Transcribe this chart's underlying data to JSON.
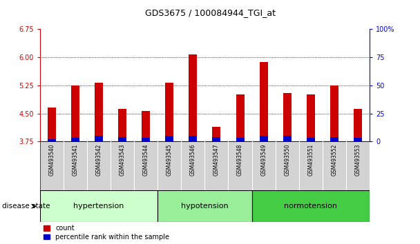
{
  "title": "GDS3675 / 100084944_TGI_at",
  "samples": [
    "GSM493540",
    "GSM493541",
    "GSM493542",
    "GSM493543",
    "GSM493544",
    "GSM493545",
    "GSM493546",
    "GSM493547",
    "GSM493548",
    "GSM493549",
    "GSM493550",
    "GSM493551",
    "GSM493552",
    "GSM493553"
  ],
  "count_values": [
    4.65,
    5.25,
    5.32,
    4.62,
    4.57,
    5.32,
    6.08,
    4.15,
    5.0,
    5.88,
    5.05,
    5.0,
    5.25,
    4.62
  ],
  "percentile_values": [
    2,
    3,
    5,
    4,
    3,
    5,
    5,
    4,
    3,
    5,
    5,
    3,
    4,
    3
  ],
  "ylim_left": [
    3.75,
    6.75
  ],
  "ylim_right": [
    0,
    100
  ],
  "yticks_left": [
    3.75,
    4.5,
    5.25,
    6.0,
    6.75
  ],
  "yticks_right": [
    0,
    25,
    50,
    75,
    100
  ],
  "groups": [
    {
      "label": "hypertension",
      "start": 0,
      "end": 5,
      "color": "#ccffcc"
    },
    {
      "label": "hypotension",
      "start": 5,
      "end": 9,
      "color": "#99ee99"
    },
    {
      "label": "normotension",
      "start": 9,
      "end": 14,
      "color": "#44cc44"
    }
  ],
  "bar_color_red": "#cc0000",
  "bar_color_blue": "#0000cc",
  "bar_width": 0.35,
  "bg_color": "#ffffff",
  "plot_bg": "#ffffff",
  "tick_color_left": "#cc0000",
  "tick_color_right": "#0000cc",
  "grid_color": "#000000",
  "group_bar_bg": "#d3d3d3",
  "disease_state_label": "disease state",
  "legend_count": "count",
  "legend_percentile": "percentile rank within the sample"
}
